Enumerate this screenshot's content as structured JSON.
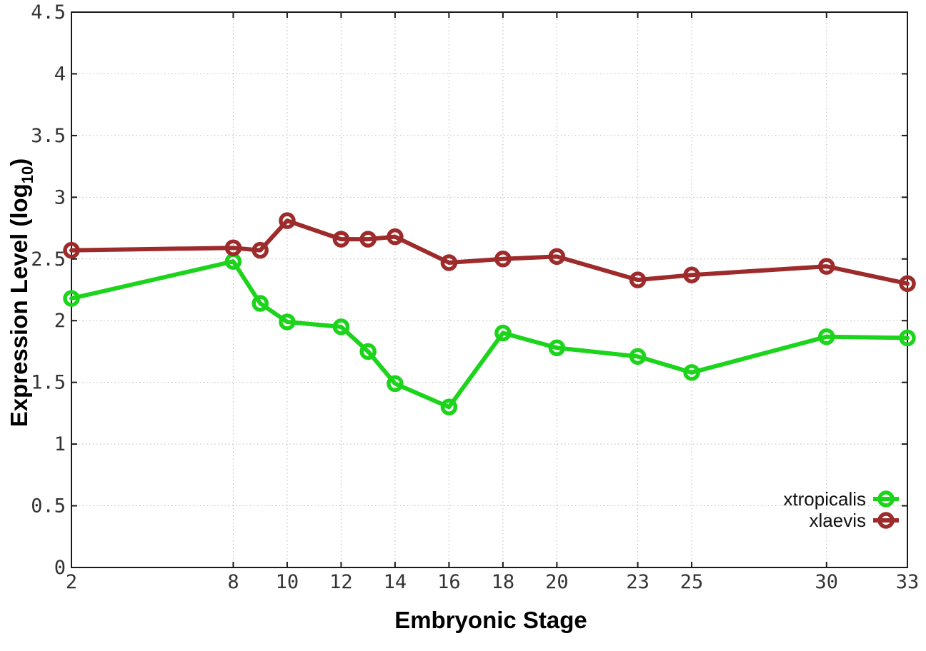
{
  "chart_data": {
    "type": "line",
    "title": "",
    "xlabel": "Embryonic Stage",
    "ylabel": "Expression Level (log10)",
    "ylabel_parts": {
      "main": "Expression Level (log",
      "sub": "10",
      "close": ")"
    },
    "xlim": [
      2,
      33
    ],
    "ylim": [
      0,
      4.5
    ],
    "grid": true,
    "legend_position": "bottom-right",
    "x": [
      2,
      8,
      9,
      10,
      12,
      13,
      14,
      16,
      18,
      20,
      23,
      25,
      30,
      33
    ],
    "x_ticks": [
      2,
      8,
      10,
      12,
      14,
      16,
      18,
      20,
      23,
      25,
      30,
      33
    ],
    "x_tick_labels": [
      "2",
      "8",
      "10",
      "12",
      "14",
      "16",
      "18",
      "20",
      "23",
      "25",
      "30",
      "33"
    ],
    "y_ticks": [
      0,
      0.5,
      1,
      1.5,
      2,
      2.5,
      3,
      3.5,
      4,
      4.5
    ],
    "y_tick_labels": [
      "0",
      "0.5",
      "1",
      "1.5",
      "2",
      "2.5",
      "3",
      "3.5",
      "4",
      "4.5"
    ],
    "series": [
      {
        "name": "xtropicalis",
        "color": "#1cd41c",
        "values": [
          2.18,
          2.48,
          2.14,
          1.99,
          1.95,
          1.75,
          1.49,
          1.3,
          1.9,
          1.78,
          1.71,
          1.58,
          1.87,
          1.86
        ]
      },
      {
        "name": "xlaevis",
        "color": "#9e2b2b",
        "values": [
          2.57,
          2.59,
          2.57,
          2.81,
          2.66,
          2.66,
          2.68,
          2.47,
          2.5,
          2.52,
          2.33,
          2.37,
          2.44,
          2.3
        ]
      }
    ]
  },
  "colors": {
    "background": "#ffffff",
    "border": "#1a1a1a",
    "grid": "#b8b8b8",
    "tick_text": "#333333",
    "label_text": "#000000"
  }
}
